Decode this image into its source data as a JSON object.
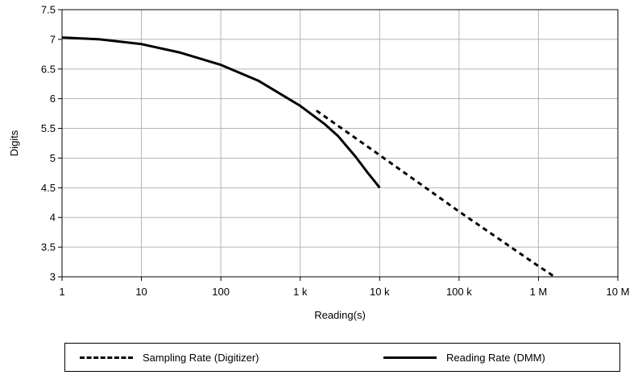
{
  "chart_data": {
    "type": "line",
    "xlabel": "Reading(s)",
    "ylabel": "Digits",
    "xscale": "log10",
    "xlim": [
      1,
      10000000
    ],
    "ylim": [
      3,
      7.5
    ],
    "x_ticks": [
      1,
      10,
      100,
      1000,
      10000,
      100000,
      1000000,
      10000000
    ],
    "x_tick_labels": [
      "1",
      "10",
      "100",
      "1 k",
      "10 k",
      "100 k",
      "1 M",
      "10 M"
    ],
    "y_ticks": [
      3,
      3.5,
      4,
      4.5,
      5,
      5.5,
      6,
      6.5,
      7,
      7.5
    ],
    "y_tick_labels": [
      "3",
      "3.5",
      "4",
      "4.5",
      "5",
      "5.5",
      "6",
      "6.5",
      "7",
      "7.5"
    ],
    "grid": true,
    "legend": "bottom",
    "series": [
      {
        "name": "Sampling Rate (Digitizer)",
        "style": "dashed",
        "color": "#000000",
        "x": [
          1600,
          10000,
          100000,
          1000000,
          1600000
        ],
        "y": [
          5.8,
          5.05,
          4.1,
          3.18,
          3.0
        ]
      },
      {
        "name": "Reading Rate (DMM)",
        "style": "solid",
        "color": "#000000",
        "x": [
          1,
          3,
          10,
          30,
          100,
          300,
          1000,
          2000,
          3000,
          5000,
          7000,
          9000,
          10000
        ],
        "y": [
          7.03,
          7.0,
          6.92,
          6.78,
          6.57,
          6.3,
          5.88,
          5.58,
          5.37,
          5.02,
          4.76,
          4.58,
          4.5
        ]
      }
    ]
  }
}
